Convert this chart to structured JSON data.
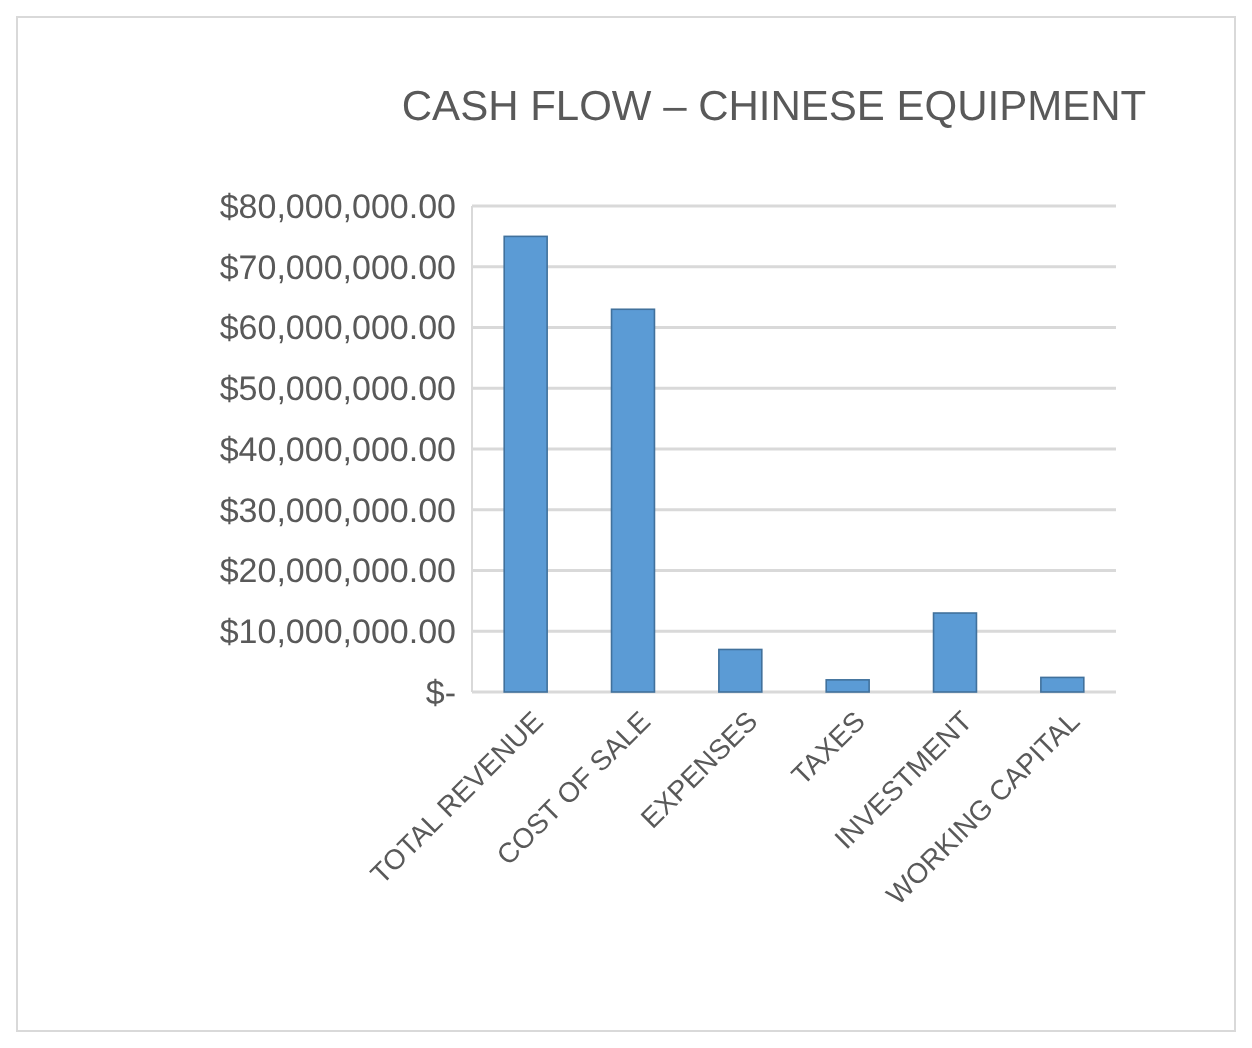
{
  "chart_data": {
    "type": "bar",
    "title": "CASH FLOW – CHINESE EQUIPMENT",
    "categories": [
      "TOTAL REVENUE",
      "COST OF SALE",
      "EXPENSES",
      "TAXES",
      "INVESTMENT",
      "WORKING CAPITAL"
    ],
    "values": [
      75000000,
      63000000,
      7000000,
      2000000,
      13000000,
      2400000
    ],
    "color": "#5b9bd5",
    "ylim": [
      0,
      80000000
    ],
    "yticks": [
      {
        "value": 0,
        "label": "$-"
      },
      {
        "value": 10000000,
        "label": "$10,000,000.00"
      },
      {
        "value": 20000000,
        "label": "$20,000,000.00"
      },
      {
        "value": 30000000,
        "label": "$30,000,000.00"
      },
      {
        "value": 40000000,
        "label": "$40,000,000.00"
      },
      {
        "value": 50000000,
        "label": "$50,000,000.00"
      },
      {
        "value": 60000000,
        "label": "$60,000,000.00"
      },
      {
        "value": 70000000,
        "label": "$70,000,000.00"
      },
      {
        "value": 80000000,
        "label": "$80,000,000.00"
      }
    ],
    "grid": true
  }
}
